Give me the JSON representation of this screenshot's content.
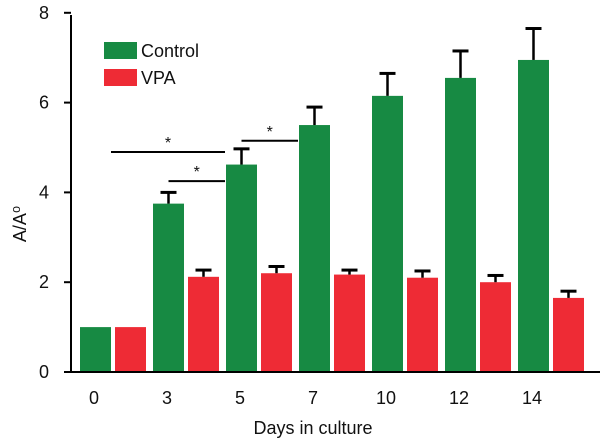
{
  "chart_data": {
    "type": "bar",
    "title": "",
    "xlabel": "Days in culture",
    "ylabel": "A/A⁰",
    "categories": [
      "0",
      "3",
      "5",
      "7",
      "10",
      "12",
      "14"
    ],
    "ylim": [
      0,
      8
    ],
    "yticks": [
      "0",
      "2",
      "4",
      "6",
      "8"
    ],
    "grid": false,
    "legend_position": "top-left",
    "series": [
      {
        "name": "Control",
        "color": "#178a43",
        "values": [
          1.0,
          3.75,
          4.62,
          5.5,
          6.15,
          6.55,
          6.95
        ],
        "errors": [
          0,
          0.25,
          0.35,
          0.4,
          0.5,
          0.6,
          0.7
        ]
      },
      {
        "name": "VPA",
        "color": "#ee2b35",
        "values": [
          1.0,
          2.12,
          2.2,
          2.17,
          2.1,
          2.0,
          1.65
        ],
        "errors": [
          0,
          0.15,
          0.15,
          0.1,
          0.15,
          0.15,
          0.15
        ]
      }
    ],
    "annotations": [
      {
        "label": "*",
        "from_category": "0",
        "to_category": "3",
        "y": 4.9
      },
      {
        "label": "*",
        "from_category": "3",
        "to_category": "3",
        "y": 4.25
      },
      {
        "label": "*",
        "from_category": "5",
        "to_category": "5",
        "y": 5.15
      }
    ]
  }
}
